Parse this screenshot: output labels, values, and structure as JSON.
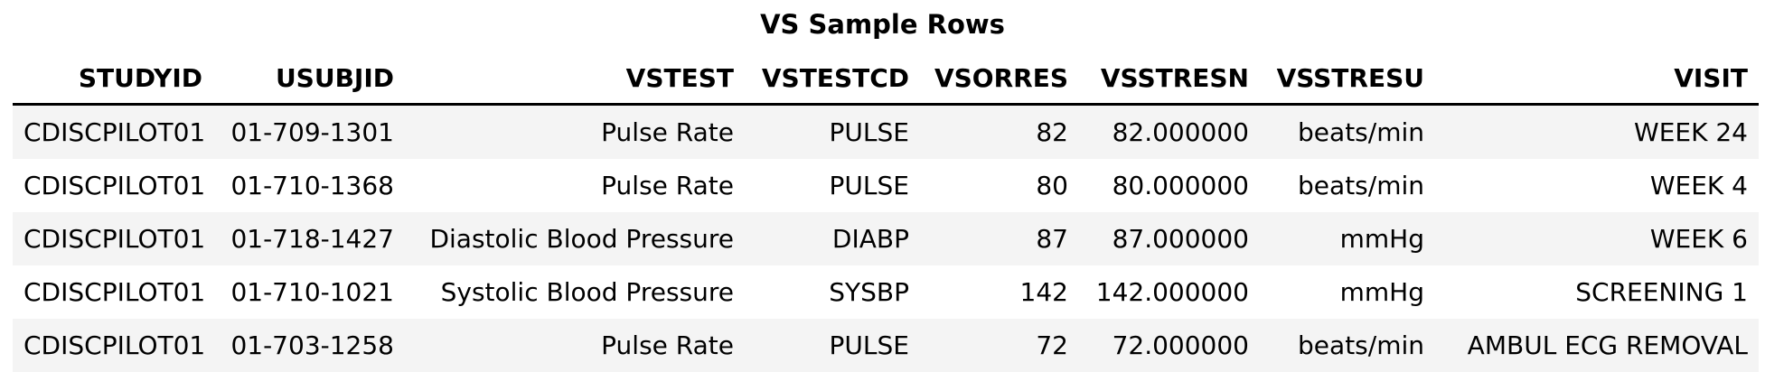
{
  "chart_data": {
    "type": "table",
    "title": "VS Sample Rows",
    "columns": [
      "STUDYID",
      "USUBJID",
      "VSTEST",
      "VSTESTCD",
      "VSORRES",
      "VSSTRESN",
      "VSSTRESU",
      "VISIT"
    ],
    "rows": [
      [
        "CDISCPILOT01",
        "01-709-1301",
        "Pulse Rate",
        "PULSE",
        "82",
        "82.000000",
        "beats/min",
        "WEEK 24"
      ],
      [
        "CDISCPILOT01",
        "01-710-1368",
        "Pulse Rate",
        "PULSE",
        "80",
        "80.000000",
        "beats/min",
        "WEEK 4"
      ],
      [
        "CDISCPILOT01",
        "01-718-1427",
        "Diastolic Blood Pressure",
        "DIABP",
        "87",
        "87.000000",
        "mmHg",
        "WEEK 6"
      ],
      [
        "CDISCPILOT01",
        "01-710-1021",
        "Systolic Blood Pressure",
        "SYSBP",
        "142",
        "142.000000",
        "mmHg",
        "SCREENING 1"
      ],
      [
        "CDISCPILOT01",
        "01-703-1258",
        "Pulse Rate",
        "PULSE",
        "72",
        "72.000000",
        "beats/min",
        "AMBUL ECG REMOVAL"
      ]
    ],
    "header_rule_color": "#000000",
    "stripe_color": "#f4f4f4"
  }
}
